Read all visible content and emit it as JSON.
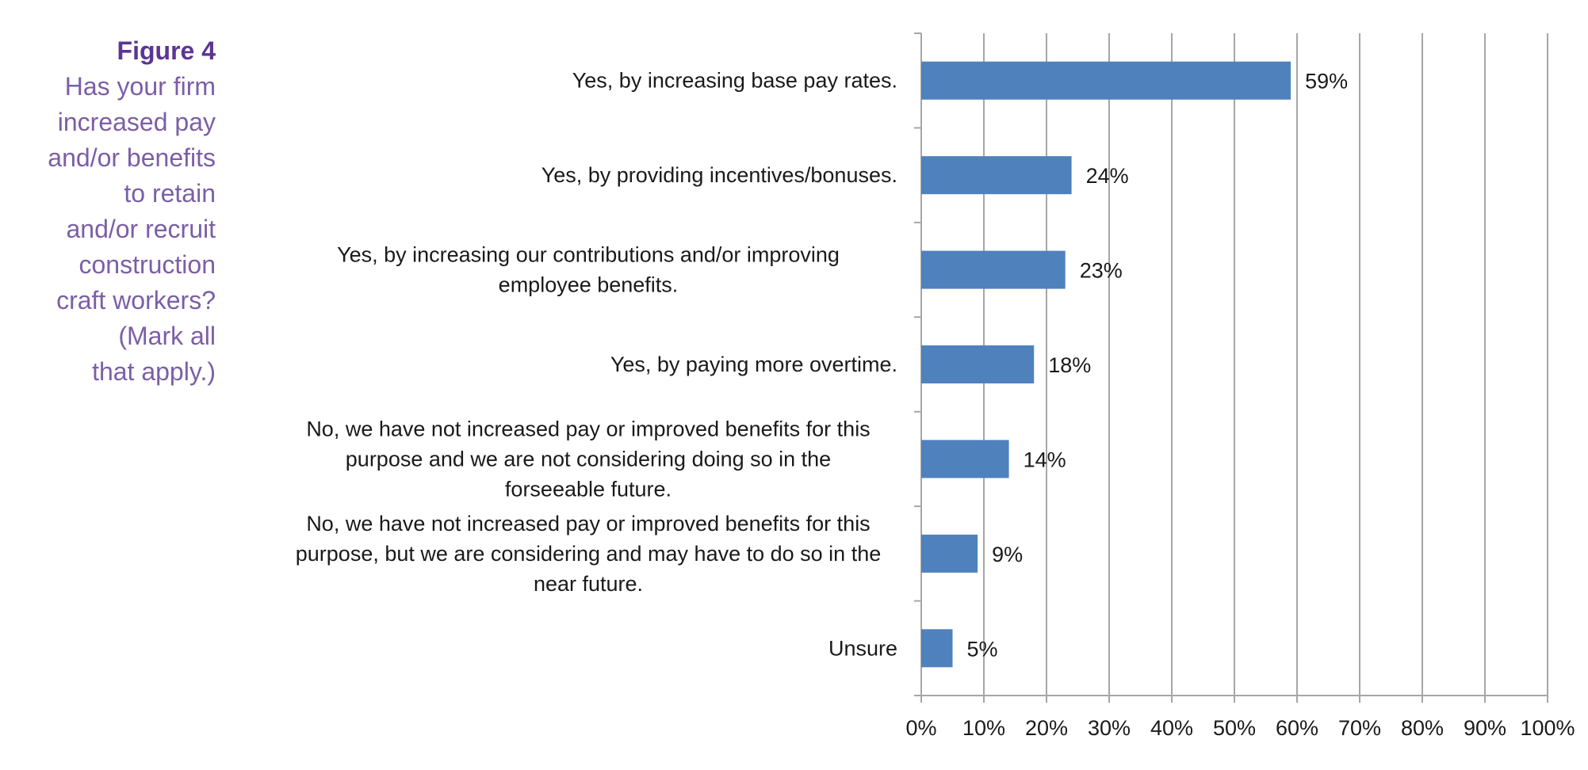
{
  "figure": {
    "number": "Figure 4",
    "caption_lines": [
      "Has your firm",
      "increased pay",
      "and/or benefits",
      "to retain",
      "and/or recruit",
      "construction",
      "craft workers?",
      "(Mark all",
      "that apply.)"
    ]
  },
  "chart_data": {
    "type": "bar",
    "orientation": "horizontal",
    "categories": [
      [
        "Yes, by increasing base pay rates."
      ],
      [
        "Yes, by providing incentives/bonuses."
      ],
      [
        "Yes, by increasing our contributions and/or improving",
        "employee benefits."
      ],
      [
        "Yes, by paying more overtime."
      ],
      [
        "No, we have not increased pay or improved benefits for this",
        "purpose and we are not considering doing so in the",
        "forseeable future."
      ],
      [
        "No, we have not increased pay or improved benefits for this",
        "purpose, but we are considering and may have to do so in the",
        "near future."
      ],
      [
        "Unsure"
      ]
    ],
    "values": [
      59,
      24,
      23,
      18,
      14,
      9,
      5
    ],
    "data_labels": [
      "59%",
      "24%",
      "23%",
      "18%",
      "14%",
      "9%",
      "5%"
    ],
    "xlim": [
      0,
      100
    ],
    "ticks": [
      0,
      10,
      20,
      30,
      40,
      50,
      60,
      70,
      80,
      90,
      100
    ],
    "tick_labels": [
      "0%",
      "10%",
      "20%",
      "30%",
      "40%",
      "50%",
      "60%",
      "70%",
      "80%",
      "90%",
      "100%"
    ],
    "grid": "vertical",
    "bar_color": "#4f81bd",
    "grid_color": "#a6a6a6",
    "title_color": "#5b3592",
    "caption_color": "#7b5ea7"
  }
}
